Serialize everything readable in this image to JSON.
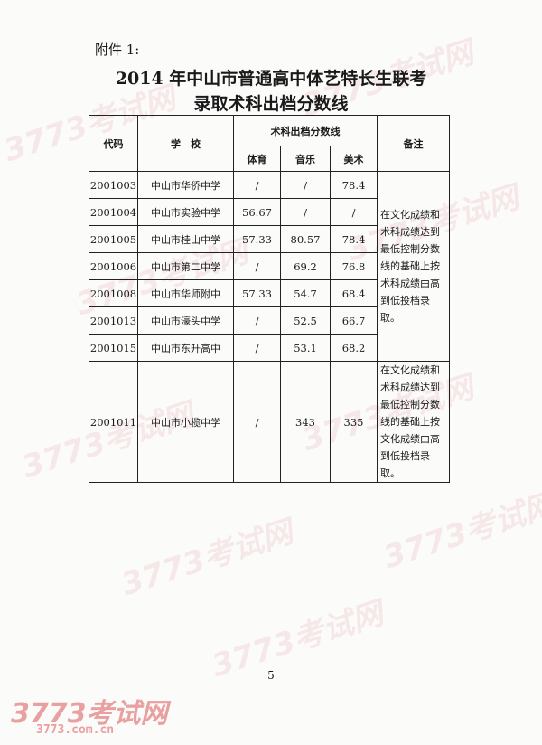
{
  "attachment_label": "附件 1:",
  "title_line1": "2014 年中山市普通高中体艺特长生联考",
  "title_line2": "录取术科出档分数线",
  "table": {
    "headers": {
      "code": "代码",
      "school": "学　校",
      "group": "术科出档分数线",
      "pe": "体育",
      "music": "音乐",
      "art": "美术",
      "remark": "备注"
    },
    "rows": [
      {
        "code": "2001003",
        "school": "中山市华侨中学",
        "pe": "/",
        "music": "/",
        "art": "78.4"
      },
      {
        "code": "2001004",
        "school": "中山市实验中学",
        "pe": "56.67",
        "music": "/",
        "art": "/"
      },
      {
        "code": "2001005",
        "school": "中山市桂山中学",
        "pe": "57.33",
        "music": "80.57",
        "art": "78.4"
      },
      {
        "code": "2001006",
        "school": "中山市第二中学",
        "pe": "/",
        "music": "69.2",
        "art": "76.8"
      },
      {
        "code": "2001008",
        "school": "中山市华师附中",
        "pe": "57.33",
        "music": "54.7",
        "art": "68.4"
      },
      {
        "code": "2001013",
        "school": "中山市濠头中学",
        "pe": "/",
        "music": "52.5",
        "art": "66.7"
      },
      {
        "code": "2001015",
        "school": "中山市东升高中",
        "pe": "/",
        "music": "53.1",
        "art": "68.2"
      },
      {
        "code": "2001011",
        "school": "中山市小榄中学",
        "pe": "/",
        "music": "343",
        "art": "335"
      }
    ],
    "remark1": "在文化成绩和术科成绩达到最低控制分数线的基础上按术科成绩由高到低投档录取。",
    "remark2": "在文化成绩和术科成绩达到最低控制分数线的基础上按文化成绩由高到低投档录取。"
  },
  "page_number": "5",
  "watermark": {
    "logo": "3773考试网",
    "url": "3773.com.cn",
    "color": "#e8a0a0"
  }
}
